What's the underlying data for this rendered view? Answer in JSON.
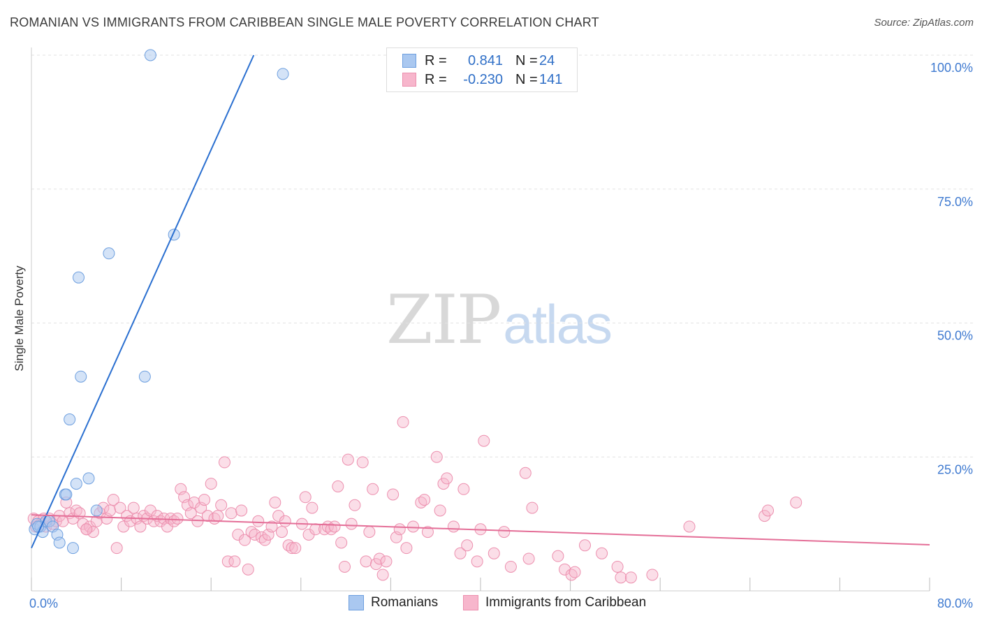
{
  "title": "ROMANIAN VS IMMIGRANTS FROM CARIBBEAN SINGLE MALE POVERTY CORRELATION CHART",
  "source": "Source: ZipAtlas.com",
  "watermark": {
    "zip": "ZIP",
    "atlas": "atlas"
  },
  "legend": {
    "rows": [
      {
        "r_label": "R =",
        "r_value": "0.841",
        "n_label": "N =",
        "n_value": "24"
      },
      {
        "r_label": "R =",
        "r_value": "-0.230",
        "n_label": "N =",
        "n_value": "141"
      }
    ]
  },
  "bottom_legend": {
    "series1": "Romanians",
    "series2": "Immigrants from Caribbean"
  },
  "colors": {
    "blue_fill": "#aac8f0",
    "blue_stroke": "#6d9fdf",
    "blue_line": "#2a6fd0",
    "pink_fill": "#f7b6cc",
    "pink_stroke": "#ec8fae",
    "pink_line": "#e46e97",
    "axis_label": "#3f7ad0"
  },
  "chart_data": {
    "type": "scatter",
    "title": "ROMANIAN VS IMMIGRANTS FROM CARIBBEAN SINGLE MALE POVERTY CORRELATION CHART",
    "xlabel": "",
    "ylabel": "Single Male Poverty",
    "xlim": [
      0,
      80
    ],
    "ylim": [
      0,
      100
    ],
    "x_tick_labels": [
      "0.0%",
      "80.0%"
    ],
    "y_tick_labels": [
      "25.0%",
      "50.0%",
      "75.0%",
      "100.0%"
    ],
    "y_ticks": [
      25,
      50,
      75,
      100
    ],
    "legend_position": "top-center",
    "series": [
      {
        "name": "Romanians",
        "r": 0.841,
        "n": 24,
        "trend": {
          "x0": 0.0,
          "y0": 8.0,
          "x1": 19.8,
          "y1": 100
        },
        "points": [
          [
            0.3,
            11.5
          ],
          [
            0.5,
            12.5
          ],
          [
            0.8,
            12.0
          ],
          [
            1.0,
            11.0
          ],
          [
            1.3,
            13.0
          ],
          [
            1.6,
            13.0
          ],
          [
            1.9,
            12.0
          ],
          [
            2.3,
            10.5
          ],
          [
            2.5,
            9.0
          ],
          [
            3.0,
            18.0
          ],
          [
            3.1,
            18.0
          ],
          [
            3.4,
            32.0
          ],
          [
            3.7,
            8.0
          ],
          [
            4.0,
            20.0
          ],
          [
            4.2,
            58.5
          ],
          [
            4.4,
            40.0
          ],
          [
            5.1,
            21.0
          ],
          [
            5.8,
            15.0
          ],
          [
            6.9,
            63.0
          ],
          [
            10.1,
            40.0
          ],
          [
            10.6,
            100.0
          ],
          [
            12.7,
            66.5
          ],
          [
            22.4,
            96.5
          ],
          [
            0.6,
            12.0
          ]
        ]
      },
      {
        "name": "Immigrants from Caribbean",
        "r": -0.23,
        "n": 141,
        "trend": {
          "x0": 0.0,
          "y0": 14.2,
          "x1": 80.0,
          "y1": 8.6
        },
        "points": [
          [
            0.2,
            13.5
          ],
          [
            0.4,
            12.0
          ],
          [
            0.6,
            13.0
          ],
          [
            0.8,
            12.5
          ],
          [
            1.1,
            13.5
          ],
          [
            1.3,
            12.0
          ],
          [
            1.6,
            13.5
          ],
          [
            1.9,
            12.5
          ],
          [
            2.2,
            13.0
          ],
          [
            2.5,
            14.0
          ],
          [
            2.8,
            13.0
          ],
          [
            3.1,
            16.5
          ],
          [
            3.4,
            14.5
          ],
          [
            3.7,
            13.5
          ],
          [
            4.0,
            15.0
          ],
          [
            4.3,
            14.5
          ],
          [
            4.6,
            12.5
          ],
          [
            4.9,
            11.5
          ],
          [
            5.2,
            12.0
          ],
          [
            5.5,
            11.0
          ],
          [
            5.8,
            13.0
          ],
          [
            6.1,
            14.5
          ],
          [
            6.4,
            15.5
          ],
          [
            6.7,
            13.5
          ],
          [
            7.0,
            15.0
          ],
          [
            7.3,
            17.0
          ],
          [
            7.6,
            8.0
          ],
          [
            7.9,
            15.5
          ],
          [
            8.2,
            12.0
          ],
          [
            8.5,
            14.0
          ],
          [
            8.8,
            13.0
          ],
          [
            9.1,
            15.5
          ],
          [
            9.4,
            13.5
          ],
          [
            9.7,
            12.0
          ],
          [
            10.0,
            14.0
          ],
          [
            10.3,
            13.5
          ],
          [
            10.6,
            15.0
          ],
          [
            10.9,
            13.0
          ],
          [
            11.2,
            14.0
          ],
          [
            11.5,
            13.0
          ],
          [
            11.8,
            13.5
          ],
          [
            12.1,
            12.0
          ],
          [
            12.4,
            13.5
          ],
          [
            12.7,
            13.0
          ],
          [
            13.0,
            13.5
          ],
          [
            13.3,
            19.0
          ],
          [
            13.6,
            17.5
          ],
          [
            13.9,
            16.0
          ],
          [
            14.2,
            14.5
          ],
          [
            14.5,
            16.5
          ],
          [
            14.8,
            13.0
          ],
          [
            15.1,
            15.5
          ],
          [
            15.4,
            17.0
          ],
          [
            15.7,
            14.0
          ],
          [
            16.0,
            20.0
          ],
          [
            16.3,
            13.5
          ],
          [
            16.6,
            14.0
          ],
          [
            16.9,
            16.0
          ],
          [
            17.2,
            24.0
          ],
          [
            17.5,
            5.5
          ],
          [
            17.8,
            14.5
          ],
          [
            18.1,
            5.5
          ],
          [
            18.4,
            10.5
          ],
          [
            18.7,
            15.0
          ],
          [
            19.0,
            9.5
          ],
          [
            19.3,
            4.0
          ],
          [
            19.6,
            11.0
          ],
          [
            19.9,
            10.5
          ],
          [
            20.2,
            13.0
          ],
          [
            20.5,
            10.0
          ],
          [
            20.8,
            9.5
          ],
          [
            21.1,
            10.5
          ],
          [
            21.4,
            12.0
          ],
          [
            21.7,
            16.5
          ],
          [
            22.0,
            14.0
          ],
          [
            22.3,
            11.0
          ],
          [
            22.6,
            13.0
          ],
          [
            22.9,
            8.5
          ],
          [
            23.2,
            8.0
          ],
          [
            23.5,
            8.0
          ],
          [
            24.1,
            12.5
          ],
          [
            24.4,
            17.5
          ],
          [
            24.7,
            10.5
          ],
          [
            25.0,
            15.5
          ],
          [
            25.3,
            11.5
          ],
          [
            26.1,
            11.5
          ],
          [
            26.4,
            12.0
          ],
          [
            26.7,
            11.5
          ],
          [
            27.0,
            12.0
          ],
          [
            27.3,
            19.5
          ],
          [
            27.6,
            9.0
          ],
          [
            27.9,
            4.5
          ],
          [
            28.2,
            24.5
          ],
          [
            28.5,
            12.5
          ],
          [
            28.8,
            16.0
          ],
          [
            29.5,
            24.0
          ],
          [
            29.8,
            5.5
          ],
          [
            30.1,
            11.0
          ],
          [
            30.4,
            19.0
          ],
          [
            30.7,
            5.0
          ],
          [
            31.0,
            6.0
          ],
          [
            31.3,
            3.0
          ],
          [
            31.6,
            5.5
          ],
          [
            32.2,
            18.0
          ],
          [
            32.5,
            10.0
          ],
          [
            32.8,
            11.5
          ],
          [
            33.1,
            31.5
          ],
          [
            33.4,
            8.0
          ],
          [
            34.0,
            12.0
          ],
          [
            34.7,
            16.5
          ],
          [
            35.0,
            17.0
          ],
          [
            35.3,
            11.0
          ],
          [
            36.1,
            25.0
          ],
          [
            36.4,
            15.0
          ],
          [
            36.7,
            20.0
          ],
          [
            37.0,
            21.0
          ],
          [
            37.6,
            12.0
          ],
          [
            38.2,
            7.0
          ],
          [
            38.5,
            19.0
          ],
          [
            38.8,
            8.5
          ],
          [
            39.7,
            5.5
          ],
          [
            40.0,
            11.5
          ],
          [
            40.3,
            28.0
          ],
          [
            41.2,
            7.0
          ],
          [
            42.1,
            11.0
          ],
          [
            42.7,
            4.5
          ],
          [
            44.0,
            22.0
          ],
          [
            44.3,
            6.0
          ],
          [
            44.6,
            15.5
          ],
          [
            46.9,
            6.5
          ],
          [
            47.5,
            4.0
          ],
          [
            48.1,
            3.0
          ],
          [
            48.4,
            3.5
          ],
          [
            49.3,
            8.5
          ],
          [
            50.8,
            7.0
          ],
          [
            52.2,
            4.5
          ],
          [
            52.5,
            2.5
          ],
          [
            53.4,
            2.5
          ],
          [
            55.3,
            3.0
          ],
          [
            58.6,
            12.0
          ],
          [
            65.3,
            14.0
          ],
          [
            65.6,
            15.0
          ],
          [
            68.1,
            16.5
          ],
          [
            4.9,
            11.5
          ]
        ]
      }
    ]
  }
}
